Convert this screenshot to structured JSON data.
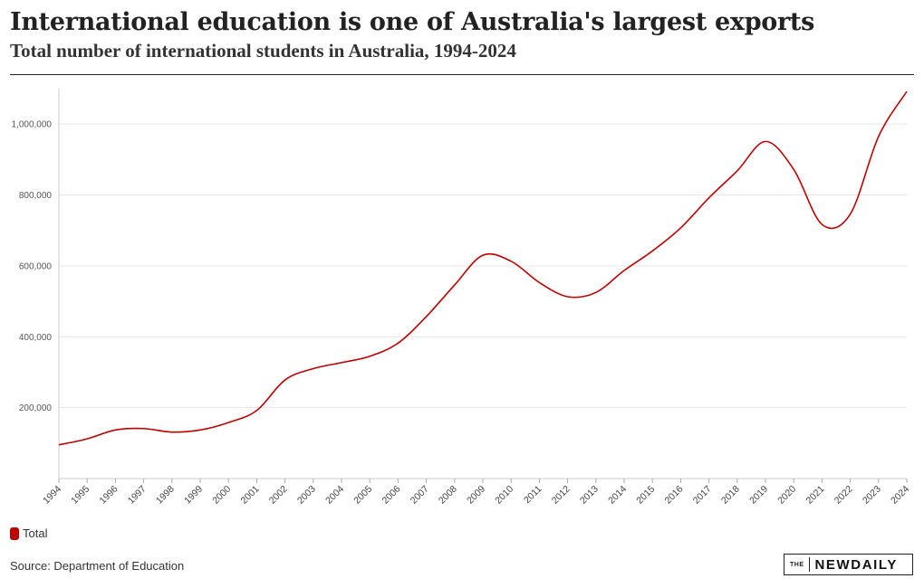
{
  "header": {
    "title": "International education is one of Australia's largest exports",
    "subtitle": "Total number of international students in Australia, 1994-2024"
  },
  "chart_data": {
    "type": "line",
    "title": "International education is one of Australia's largest exports",
    "subtitle": "Total number of international students in Australia, 1994-2024",
    "xlabel": "",
    "ylabel": "",
    "x": [
      "1994",
      "1995",
      "1996",
      "1997",
      "1998",
      "1999",
      "2000",
      "2001",
      "2002",
      "2003",
      "2004",
      "2005",
      "2006",
      "2007",
      "2008",
      "2009",
      "2010",
      "2011",
      "2012",
      "2013",
      "2014",
      "2015",
      "2016",
      "2017",
      "2018",
      "2019",
      "2020",
      "2021",
      "2022",
      "2023",
      "2024"
    ],
    "y_ticks": [
      200000,
      400000,
      600000,
      800000,
      1000000
    ],
    "y_tick_labels": [
      "200,000",
      "400,000",
      "600,000",
      "800,000",
      "1,000,000"
    ],
    "ylim": [
      0,
      1100000
    ],
    "grid": "horizontal",
    "legend_position": "bottom-left",
    "series": [
      {
        "name": "Total",
        "color": "#c00000",
        "values": [
          95000,
          112000,
          137000,
          141000,
          131000,
          137000,
          158000,
          192000,
          278000,
          310000,
          327000,
          345000,
          382000,
          457000,
          546000,
          630000,
          613000,
          553000,
          513000,
          525000,
          587000,
          642000,
          707000,
          792000,
          868000,
          951000,
          872000,
          717000,
          746000,
          965000,
          1092000
        ]
      }
    ]
  },
  "legend": {
    "label": "Total",
    "color": "#c00000"
  },
  "footer": {
    "source": "Source: Department of Education",
    "logo_the": "THE",
    "logo_word": "NEWDAILY"
  }
}
